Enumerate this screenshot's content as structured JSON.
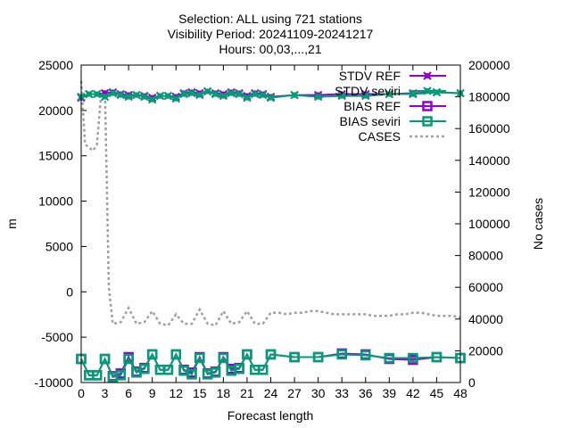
{
  "chart_data": {
    "type": "line",
    "title": [
      "Selection: ALL using   721 stations",
      "Visibility   Period: 20241109-20241217",
      "Hours: 00,03,...,21"
    ],
    "xlabel": "Forecast length",
    "ylabel": "m",
    "y2label": "No cases",
    "xlim": [
      0,
      48
    ],
    "ylim": [
      -10000,
      25000
    ],
    "y2lim": [
      0,
      200000
    ],
    "xticks": [
      0,
      3,
      6,
      9,
      12,
      15,
      18,
      21,
      24,
      27,
      30,
      33,
      36,
      39,
      42,
      45,
      48
    ],
    "yticks": [
      -10000,
      -5000,
      0,
      5000,
      10000,
      15000,
      20000,
      25000
    ],
    "y2ticks": [
      0,
      20000,
      40000,
      60000,
      80000,
      100000,
      120000,
      140000,
      160000,
      180000,
      200000
    ],
    "legend_position": "top-right",
    "series": [
      {
        "name": "STDV REF",
        "axis": "y1",
        "color": "#9400d3",
        "marker": "x",
        "x": [
          0,
          1,
          2,
          3,
          4,
          5,
          6,
          7,
          8,
          9,
          10,
          11,
          12,
          13,
          14,
          15,
          16,
          17,
          18,
          19,
          20,
          21,
          22,
          23,
          24,
          27,
          30,
          33,
          36,
          39,
          42,
          45,
          48
        ],
        "values": [
          21400,
          21800,
          21800,
          21900,
          22000,
          21800,
          21700,
          21700,
          21600,
          21400,
          21600,
          21600,
          21500,
          21900,
          22000,
          21900,
          22100,
          21900,
          21800,
          22000,
          21900,
          21600,
          21900,
          21800,
          21500,
          21700,
          21700,
          21800,
          21800,
          21800,
          21900,
          22000,
          21900
        ]
      },
      {
        "name": "STDV seviri",
        "axis": "y1",
        "color": "#009e73",
        "marker": "x",
        "x": [
          0,
          1,
          2,
          3,
          4,
          5,
          6,
          7,
          8,
          9,
          10,
          11,
          12,
          13,
          14,
          15,
          16,
          17,
          18,
          19,
          20,
          21,
          22,
          23,
          24,
          27,
          30,
          33,
          36,
          39,
          42,
          45,
          48
        ],
        "values": [
          21500,
          21800,
          21800,
          21500,
          21900,
          21700,
          21500,
          21700,
          21500,
          21200,
          21600,
          21600,
          21300,
          21800,
          21900,
          21700,
          22100,
          21800,
          21600,
          21900,
          21800,
          21400,
          21800,
          21700,
          21400,
          21700,
          21500,
          21600,
          21600,
          21800,
          21800,
          22000,
          21900
        ]
      },
      {
        "name": "BIAS REF",
        "axis": "y1",
        "color": "#9400d3",
        "marker": "square",
        "x": [
          0,
          1,
          2,
          3,
          4,
          5,
          6,
          7,
          8,
          9,
          10,
          11,
          12,
          13,
          14,
          15,
          16,
          17,
          18,
          19,
          20,
          21,
          22,
          23,
          24,
          27,
          30,
          33,
          36,
          39,
          42,
          45,
          48
        ],
        "values": [
          -7400,
          -9200,
          -9200,
          -7400,
          -9300,
          -9000,
          -7200,
          -8800,
          -8400,
          -6900,
          -8600,
          -8600,
          -6900,
          -8600,
          -8900,
          -7200,
          -9000,
          -8800,
          -7200,
          -8500,
          -8400,
          -6900,
          -8600,
          -8600,
          -6900,
          -7200,
          -7200,
          -6800,
          -6900,
          -7400,
          -7500,
          -7200,
          -7300
        ]
      },
      {
        "name": "BIAS seviri",
        "axis": "y1",
        "color": "#009e73",
        "marker": "square",
        "x": [
          0,
          1,
          2,
          3,
          4,
          5,
          6,
          7,
          8,
          9,
          10,
          11,
          12,
          13,
          14,
          15,
          16,
          17,
          18,
          19,
          20,
          21,
          22,
          23,
          24,
          27,
          30,
          33,
          36,
          39,
          42,
          45,
          48
        ],
        "values": [
          -7400,
          -9200,
          -9200,
          -7400,
          -9400,
          -9200,
          -7400,
          -8900,
          -8500,
          -6900,
          -8600,
          -8600,
          -6900,
          -8700,
          -9100,
          -7300,
          -9100,
          -8900,
          -7300,
          -8700,
          -8500,
          -6900,
          -8600,
          -8600,
          -6900,
          -7200,
          -7200,
          -6900,
          -7000,
          -7300,
          -7300,
          -7200,
          -7300
        ]
      },
      {
        "name": "CASES",
        "axis": "y2",
        "color": "#a0a0a0",
        "marker": "none",
        "x": [
          0,
          0.5,
          1,
          1.5,
          2,
          2.5,
          3,
          3.5,
          4,
          5,
          6,
          7,
          8,
          9,
          10,
          11,
          12,
          13,
          14,
          15,
          16,
          17,
          18,
          19,
          20,
          21,
          22,
          23,
          24,
          25,
          26,
          27,
          28,
          29,
          30,
          31,
          32,
          33,
          34,
          35,
          36,
          37,
          38,
          39,
          40,
          41,
          42,
          43,
          44,
          45,
          46,
          47,
          48
        ],
        "values": [
          190000,
          150000,
          148000,
          146000,
          150000,
          180000,
          185000,
          60000,
          37000,
          38000,
          47000,
          37000,
          38000,
          45000,
          37000,
          36000,
          43000,
          37000,
          37000,
          46000,
          37000,
          36000,
          45000,
          37000,
          38000,
          45000,
          37000,
          37000,
          44000,
          44000,
          43000,
          44000,
          44000,
          45000,
          45000,
          44000,
          43000,
          43000,
          43000,
          43000,
          43000,
          42000,
          42000,
          42000,
          43000,
          43000,
          44000,
          44000,
          43000,
          42000,
          42000,
          42000,
          41000
        ]
      }
    ]
  }
}
